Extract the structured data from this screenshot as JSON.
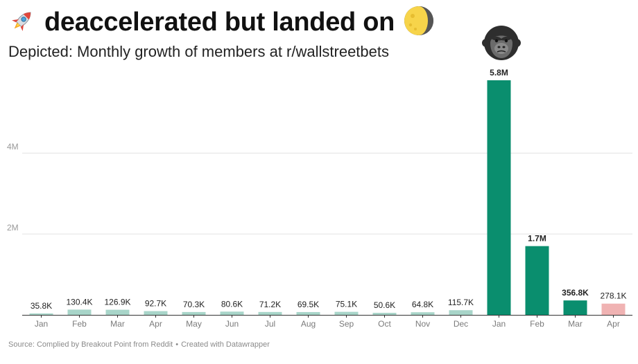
{
  "header": {
    "title": "deaccelerated but landed on",
    "subtitle": "Depicted: Monthly growth of members at r/wallstreetbets",
    "title_icons": [
      "rocket-icon",
      "moon-icon"
    ],
    "highlight_icon": "gorilla-icon"
  },
  "footer": {
    "source": "Source: Complied by Breakout Point from Reddit",
    "credit": "Created with Datawrapper"
  },
  "colors": {
    "light_bar": "#a8d5c9",
    "dark_bar": "#0a8e6e",
    "forecast_bar": "#f0b3b3",
    "grid": "#e2e2e2",
    "axis_text": "#9a9a9a"
  },
  "chart_data": {
    "type": "bar",
    "categories": [
      "Jan",
      "Feb",
      "Mar",
      "Apr",
      "May",
      "Jun",
      "Jul",
      "Aug",
      "Sep",
      "Oct",
      "Nov",
      "Dec",
      "Jan",
      "Feb",
      "Mar",
      "Apr"
    ],
    "values": [
      35800,
      130400,
      126900,
      92700,
      70300,
      80600,
      71200,
      69500,
      75100,
      50600,
      64800,
      115700,
      5800000,
      1700000,
      356800,
      278100
    ],
    "labels": [
      "35.8K",
      "130.4K",
      "126.9K",
      "92.7K",
      "70.3K",
      "80.6K",
      "71.2K",
      "69.5K",
      "75.1K",
      "50.6K",
      "64.8K",
      "115.7K",
      "5.8M",
      "1.7M",
      "356.8K",
      "278.1K"
    ],
    "bar_style": [
      "light",
      "light",
      "light",
      "light",
      "light",
      "light",
      "light",
      "light",
      "light",
      "light",
      "light",
      "light",
      "dark",
      "dark",
      "dark",
      "forecast"
    ],
    "y_ticks": [
      2000000,
      4000000
    ],
    "y_tick_labels": [
      "2M",
      "4M"
    ],
    "ylim": [
      0,
      5800000
    ],
    "xlabel": "",
    "ylabel": "",
    "grid": true
  }
}
